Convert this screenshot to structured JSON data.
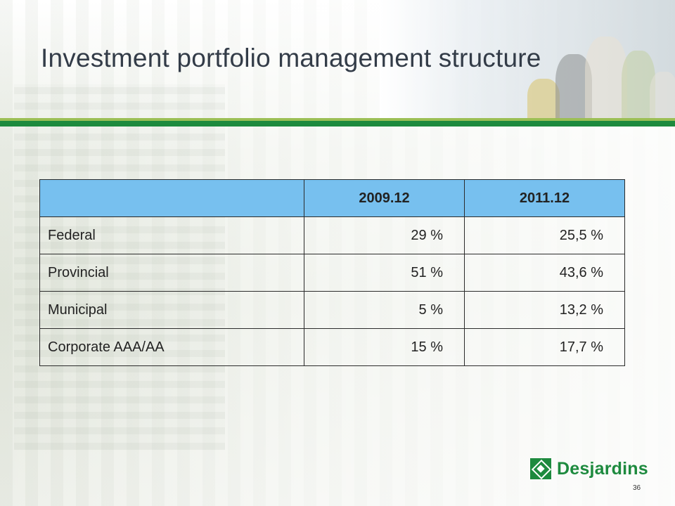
{
  "slide": {
    "title": "Investment portfolio management structure",
    "page_number": "36"
  },
  "table": {
    "headers": [
      "",
      "2009.12",
      "2011.12"
    ],
    "rows": [
      {
        "label": "Federal",
        "y2009": "29 %",
        "y2011": "25,5 %"
      },
      {
        "label": "Provincial",
        "y2009": "51 %",
        "y2011": "43,6 %"
      },
      {
        "label": "Municipal",
        "y2009": "5 %",
        "y2011": "13,2 %"
      },
      {
        "label": "Corporate AAA/AA",
        "y2009": "15 %",
        "y2011": "17,7 %"
      }
    ]
  },
  "logo": {
    "text": "Desjardins",
    "icon": "desjardins-logo-icon"
  },
  "colors": {
    "header_fill": "#77c0ef",
    "brand_green": "#1d8a3e",
    "accent_light_green": "#9bbf55",
    "title_text": "#333c48"
  }
}
